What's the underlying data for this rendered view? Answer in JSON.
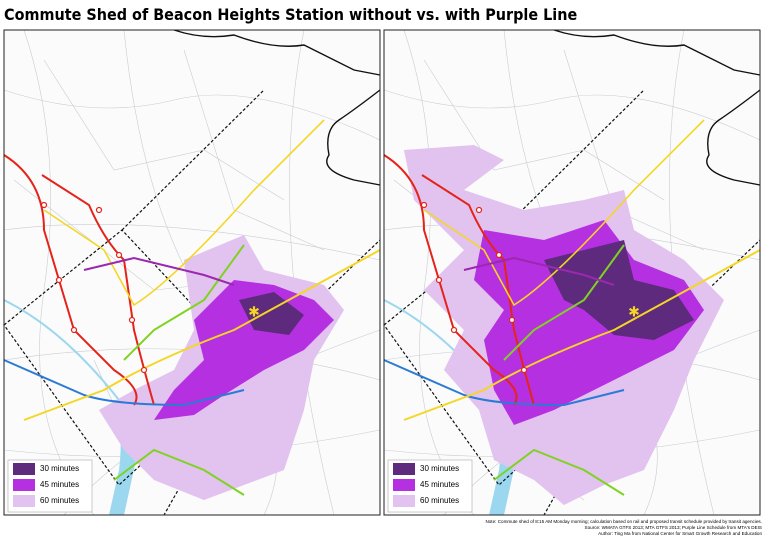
{
  "title": "Commute Shed of Beacon Heights Station without vs. with Purple Line",
  "panels": [
    {
      "legend": [
        {
          "label": "30 minutes",
          "color": "#5e2a7e"
        },
        {
          "label": "45 minutes",
          "color": "#b530e0"
        },
        {
          "label": "60 minutes",
          "color": "#e2c2ef"
        }
      ]
    },
    {
      "legend": [
        {
          "label": "30 minutes",
          "color": "#5e2a7e"
        },
        {
          "label": "45 minutes",
          "color": "#b530e0"
        },
        {
          "label": "60 minutes",
          "color": "#e2c2ef"
        }
      ]
    }
  ],
  "note": [
    "Note: Commute shed of 8:15 AM Monday morning; calculation based on rail and proposed transit schedule provided by transit agencies.",
    "Source: WMATA GTFS 2013; MTA GTFS 2013; Purple Line Schedule from MTA's DEIS",
    "Author: Ting Ma from National Center for Smart Growth Research and Education"
  ]
}
